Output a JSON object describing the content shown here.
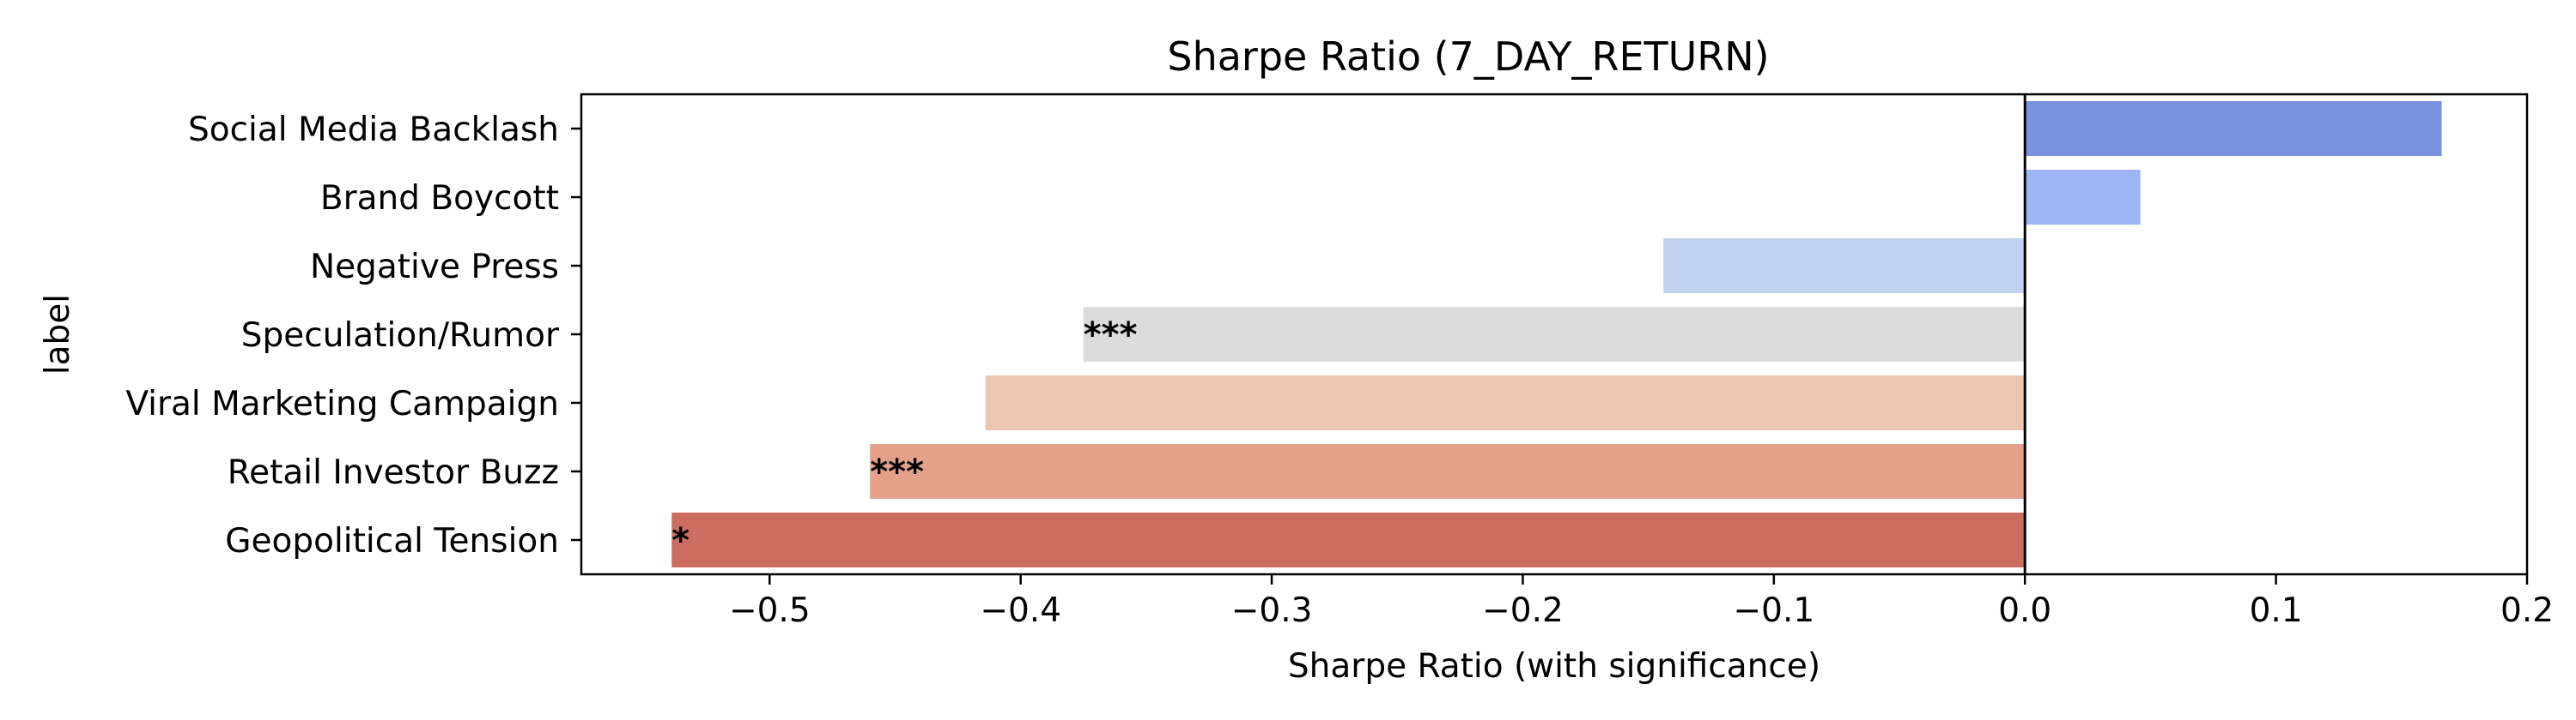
{
  "chart_data": {
    "type": "bar",
    "orientation": "horizontal",
    "title": "Sharpe Ratio (7_DAY_RETURN)",
    "xlabel": "Sharpe Ratio (with significance)",
    "ylabel": "label",
    "xlim": [
      -0.575,
      0.2
    ],
    "xticks": [
      -0.5,
      -0.4,
      -0.3,
      -0.2,
      -0.1,
      0.0,
      0.1,
      0.2
    ],
    "xtick_labels": [
      "−0.5",
      "−0.4",
      "−0.3",
      "−0.2",
      "−0.1",
      "0.0",
      "0.1",
      "0.2"
    ],
    "grid": false,
    "categories": [
      "Social Media Backlash",
      "Brand Boycott",
      "Negative Press",
      "Speculation/Rumor",
      "Viral Marketing Campaign",
      "Retail Investor Buzz",
      "Geopolitical Tension"
    ],
    "values": [
      0.166,
      0.046,
      -0.144,
      -0.375,
      -0.414,
      -0.46,
      -0.539
    ],
    "significance": [
      "",
      "",
      "",
      "***",
      "",
      "***",
      "*"
    ],
    "colors": [
      "#7892dd",
      "#9db5f2",
      "#c2d3f2",
      "#dcdcdc",
      "#ecc6b3",
      "#e4a089",
      "#cd6c60"
    ]
  }
}
